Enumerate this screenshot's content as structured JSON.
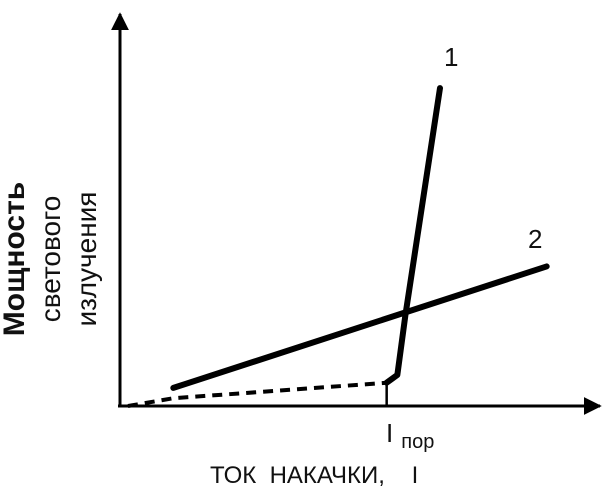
{
  "chart_data": {
    "type": "line",
    "title": "",
    "ylabel": [
      "Мощность",
      "светового излучения"
    ],
    "xlabel": "ТОК  НАКАЧКИ,    I",
    "threshold_label": {
      "main": "I",
      "sub": "пор"
    },
    "xlim": [
      0,
      1.5
    ],
    "ylim": [
      0,
      1.3
    ],
    "grid": false,
    "legend": "none",
    "threshold_x": 1.0,
    "series": [
      {
        "name": "1",
        "style": "solid",
        "points": [
          [
            1.0,
            0.09
          ],
          [
            1.04,
            0.12
          ],
          [
            1.07,
            0.35
          ],
          [
            1.2,
            1.23
          ]
        ]
      },
      {
        "name": "1",
        "style": "dashed",
        "points": [
          [
            0.03,
            0.0
          ],
          [
            0.2,
            0.03
          ],
          [
            1.0,
            0.09
          ]
        ]
      },
      {
        "name": "2",
        "style": "solid",
        "points": [
          [
            0.2,
            0.07
          ],
          [
            1.6,
            0.54
          ]
        ]
      }
    ]
  }
}
